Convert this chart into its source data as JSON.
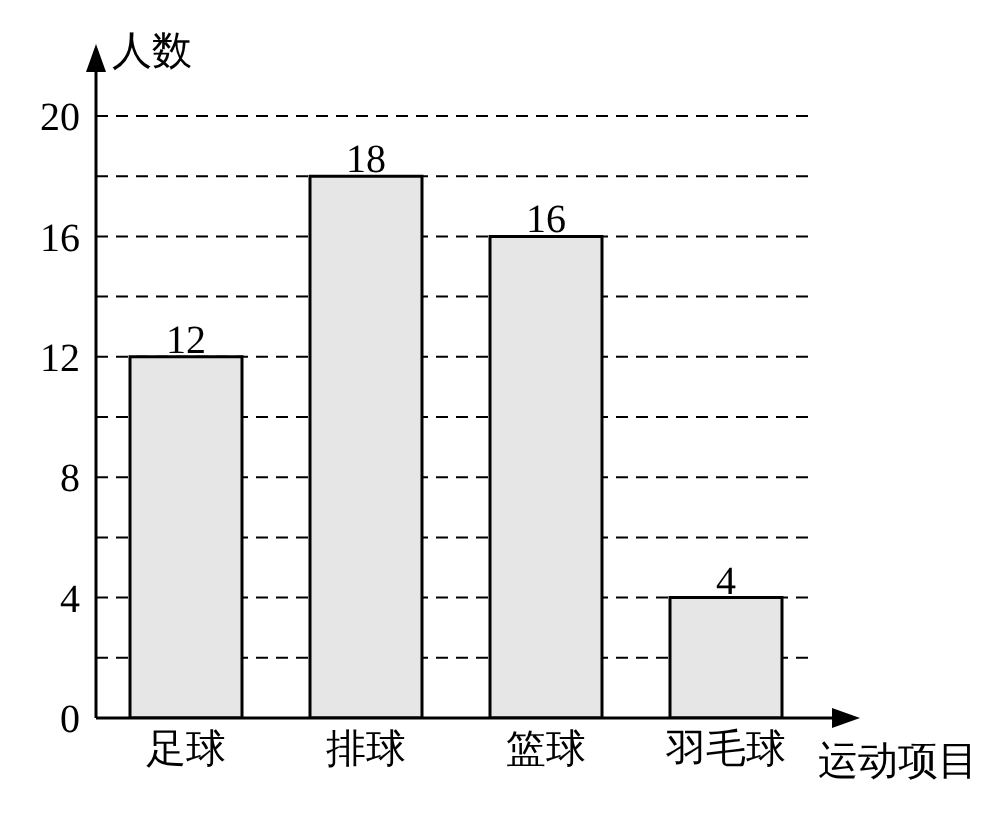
{
  "chart_data": {
    "type": "bar",
    "xlabel": "运动项目",
    "ylabel": "人数",
    "categories": [
      "足球",
      "排球",
      "篮球",
      "羽毛球"
    ],
    "values": [
      12,
      18,
      16,
      4
    ],
    "color": "#e6e6e6",
    "ylim": [
      0,
      20
    ],
    "yticks": [
      0,
      {
        "value": 2,
        "label": null
      },
      4,
      {
        "value": 6,
        "label": null
      },
      8,
      {
        "value": 10,
        "label": null
      },
      12,
      {
        "value": 14,
        "label": null
      },
      16,
      {
        "value": 18,
        "label": null
      },
      20
    ],
    "grid": "y",
    "data_labels": true
  }
}
